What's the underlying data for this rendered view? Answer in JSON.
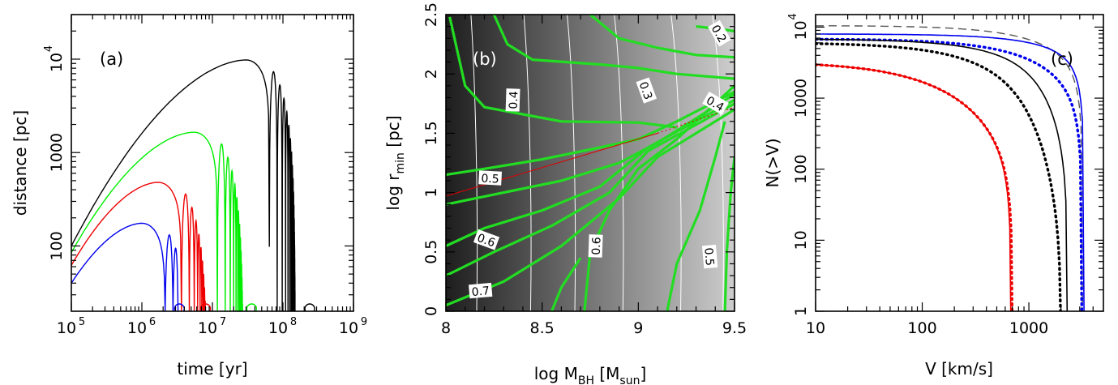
{
  "chart_data": [
    {
      "type": "line",
      "panel_label": "(a)",
      "xlabel": "time  [yr]",
      "ylabel": "distance  [pc]",
      "xscale": "log",
      "yscale": "log",
      "xlim": [
        100000,
        1000000000
      ],
      "ylim": [
        20,
        30000
      ],
      "x_ticks": [
        {
          "v": 100000,
          "m": "10",
          "e": "5"
        },
        {
          "v": 1000000,
          "m": "10",
          "e": "6"
        },
        {
          "v": 10000000,
          "m": "10",
          "e": "7"
        },
        {
          "v": 100000000,
          "m": "10",
          "e": "8"
        },
        {
          "v": 1000000000,
          "m": "10",
          "e": "9"
        }
      ],
      "y_ticks": [
        {
          "v": 100,
          "t": "100"
        },
        {
          "v": 1000,
          "t": "1000"
        },
        {
          "v": 10000,
          "m": "10",
          "e": "4"
        }
      ],
      "series": [
        {
          "color": "#000000",
          "peak_time": 30000000,
          "peak_distance": 9800,
          "end_time": 330000000,
          "return_marker_time": 240000000,
          "initial_distance": 100
        },
        {
          "color": "#00ee00",
          "peak_time": 5500000,
          "peak_distance": 1650,
          "end_time": 60000000,
          "return_marker_time": 36000000,
          "initial_distance": 85
        },
        {
          "color": "#ee0000",
          "peak_time": 1700000,
          "peak_distance": 480,
          "end_time": 20000000,
          "return_marker_time": 8000000,
          "initial_distance": 62
        },
        {
          "color": "#0000ee",
          "peak_time": 1000000,
          "peak_distance": 175,
          "end_time": 3200000,
          "return_marker_time": 3400000,
          "initial_distance": 40
        }
      ]
    },
    {
      "type": "heatmap",
      "panel_label": "(b)",
      "xlabel": {
        "main": "log  M",
        "sub": "BH",
        "mid": "  [M",
        "sub2": "sun",
        "end": "]"
      },
      "ylabel": {
        "main": "log  r",
        "sub": "min",
        "end": "  [pc]"
      },
      "xlim": [
        8,
        9.5
      ],
      "ylim": [
        0,
        2.5
      ],
      "x_ticks": [
        "8",
        "8.5",
        "9",
        "9.5"
      ],
      "y_ticks": [
        "0",
        "0.5",
        "1",
        "1.5",
        "2",
        "2.5"
      ],
      "gradient": {
        "left": "#1e1e1e",
        "right": "#cdcdcd"
      },
      "contour_color": "#22dd22",
      "white_contour_color": "#ffffff",
      "contour_labels": [
        {
          "text": "0.2",
          "x": 9.42,
          "y": 2.34,
          "rot": 60
        },
        {
          "text": "0.4",
          "x": 8.35,
          "y": 1.78,
          "rot": -88
        },
        {
          "text": "0.3",
          "x": 9.04,
          "y": 1.86,
          "rot": 70
        },
        {
          "text": "0.4",
          "x": 9.4,
          "y": 1.75,
          "rot": 30
        },
        {
          "text": "0.5",
          "x": 8.23,
          "y": 1.12,
          "rot": 3
        },
        {
          "text": "0.6",
          "x": 8.21,
          "y": 0.6,
          "rot": 20
        },
        {
          "text": "0.7",
          "x": 8.18,
          "y": 0.17,
          "rot": -5
        },
        {
          "text": "0.6",
          "x": 8.78,
          "y": 0.55,
          "rot": -88
        },
        {
          "text": "0.5",
          "x": 9.37,
          "y": 0.46,
          "rot": 85
        }
      ]
    },
    {
      "type": "line",
      "panel_label": "(c)",
      "xlabel": "V  [km/s]",
      "ylabel": "N(>V)",
      "xscale": "log",
      "yscale": "log",
      "xlim": [
        10,
        5000
      ],
      "ylim": [
        1,
        15000
      ],
      "x_ticks": [
        {
          "v": 10,
          "t": "10"
        },
        {
          "v": 100,
          "t": "100"
        },
        {
          "v": 1000,
          "t": "1000"
        }
      ],
      "y_ticks": [
        {
          "v": 1,
          "t": "1"
        },
        {
          "v": 10,
          "t": "10"
        },
        {
          "v": 100,
          "t": "100"
        },
        {
          "v": 1000,
          "t": "1000"
        },
        {
          "v": 10000,
          "m": "10",
          "e": "4"
        }
      ],
      "series": [
        {
          "color": "#555555",
          "dash": "dashed",
          "N0": 10500,
          "Vc": 550,
          "a": 0.25,
          "b": 1.6,
          "Vmax": 3200
        },
        {
          "color": "#0000ee",
          "dash": "solid",
          "N0": 8000,
          "Vc": 700,
          "a": 0.18,
          "b": 1.7,
          "Vmax": 3300
        },
        {
          "color": "#0000ee",
          "dash": "dotted",
          "N0": 6800,
          "Vc": 420,
          "a": 0.3,
          "b": 1.5,
          "Vmax": 3150
        },
        {
          "color": "#000000",
          "dash": "solid",
          "N0": 6800,
          "Vc": 260,
          "a": 0.3,
          "b": 1.8,
          "Vmax": 2300
        },
        {
          "color": "#000000",
          "dash": "dotted",
          "N0": 6000,
          "Vc": 150,
          "a": 0.38,
          "b": 1.6,
          "Vmax": 2000
        },
        {
          "color": "#ee0000",
          "dash": "solid",
          "N0": 3200,
          "Vc": 70,
          "a": 0.55,
          "b": 1.4,
          "Vmax": 680
        },
        {
          "color": "#ee0000",
          "dash": "dotted",
          "N0": 3200,
          "Vc": 70,
          "a": 0.55,
          "b": 1.4,
          "Vmax": 700
        }
      ]
    }
  ]
}
